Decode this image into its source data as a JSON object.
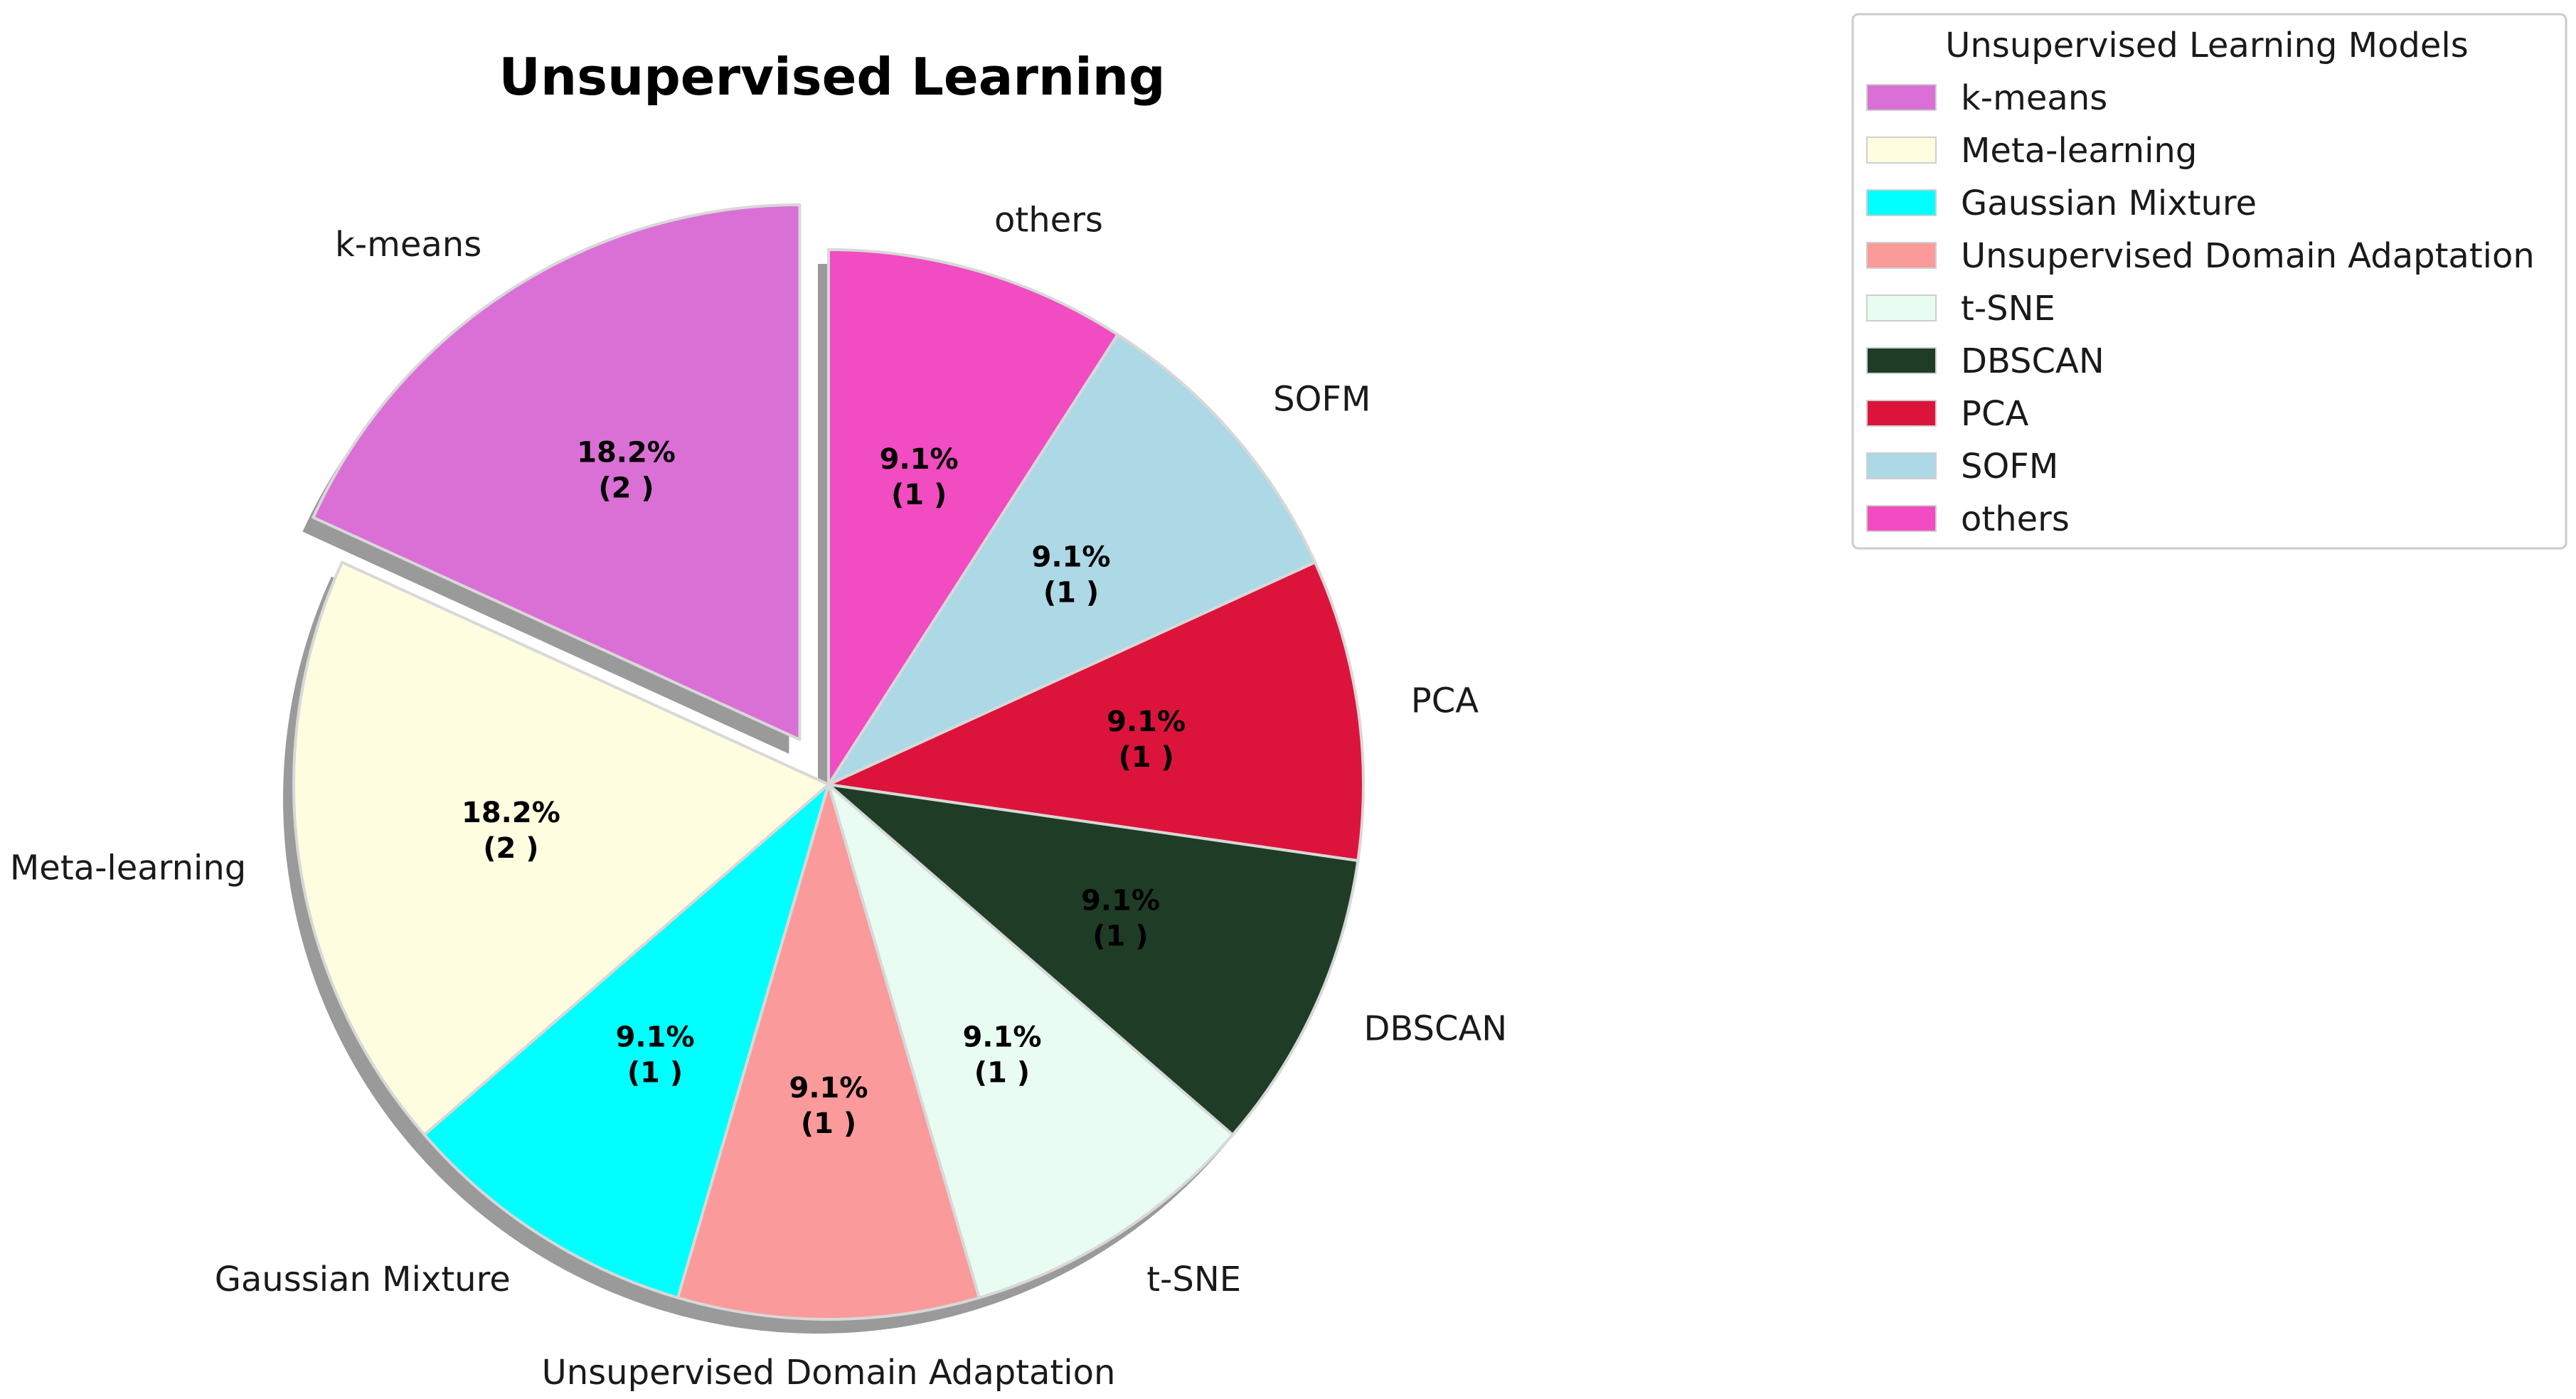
{
  "chart_data": {
    "type": "pie",
    "title": "Unsupervised Learning",
    "categories": [
      "k-means",
      "Meta-learning",
      "Gaussian Mixture",
      "Unsupervised Domain Adaptation",
      "t-SNE",
      "DBSCAN",
      "PCA",
      "SOFM",
      "others"
    ],
    "values": [
      2,
      2,
      1,
      1,
      1,
      1,
      1,
      1,
      1
    ],
    "percent_labels": [
      "18.2%",
      "18.2%",
      "9.1%",
      "9.1%",
      "9.1%",
      "9.1%",
      "9.1%",
      "9.1%",
      "9.1%"
    ],
    "count_labels": [
      "(2 )",
      "(2 )",
      "(1 )",
      "(1 )",
      "(1 )",
      "(1 )",
      "(1 )",
      "(1 )",
      "(1 )"
    ],
    "colors": [
      "#da70d6",
      "#fffde0",
      "#00ffff",
      "#fa9a9a",
      "#e8fcf2",
      "#1f3d26",
      "#dc143c",
      "#add8e6",
      "#f14cc1"
    ],
    "exploded": [
      "k-means"
    ],
    "shadow": true,
    "start_angle_deg": 90,
    "direction": "counterclockwise",
    "legend": {
      "title": "Unsupervised Learning Models",
      "placement": "outside-top-right"
    }
  }
}
